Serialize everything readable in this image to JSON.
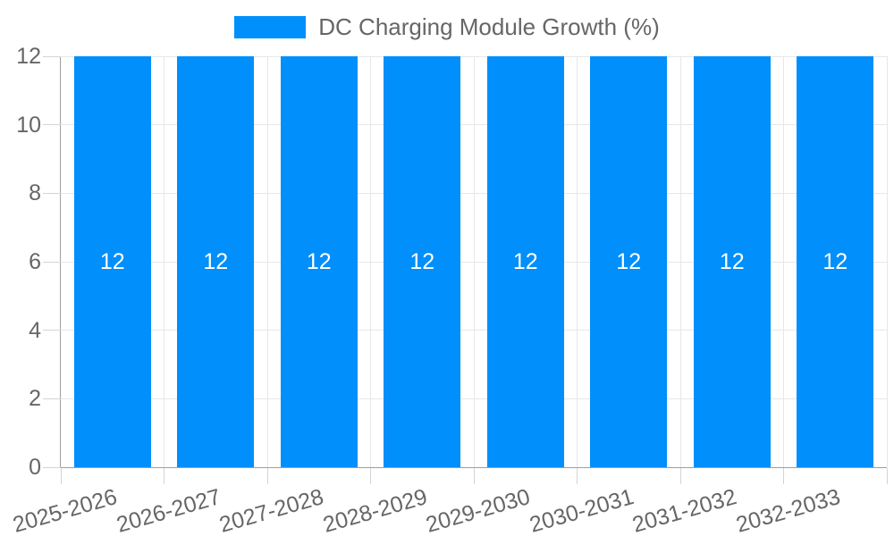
{
  "chart_data": {
    "type": "bar",
    "title": "DC Charging Module Growth (%)",
    "legend_position": "top",
    "categories": [
      "2025-2026",
      "2026-2027",
      "2027-2028",
      "2028-2029",
      "2029-2030",
      "2030-2031",
      "2031-2032",
      "2032-2033"
    ],
    "values": [
      12,
      12,
      12,
      12,
      12,
      12,
      12,
      12
    ],
    "xlabel": "",
    "ylabel": "",
    "ylim": [
      0,
      12
    ],
    "yticks": [
      0,
      2,
      4,
      6,
      8,
      10,
      12
    ],
    "grid": "horizontal-and-vertical",
    "bar_value_labels_position": "center-inside",
    "colors": {
      "bar": "#008FFB",
      "bar_label_text": "#ffffff",
      "axis_text": "#666666",
      "grid_line": "#e7e7e7",
      "tick_line": "#d4d4d4",
      "axis_line": "#9e9e9e",
      "background": "#ffffff"
    }
  }
}
